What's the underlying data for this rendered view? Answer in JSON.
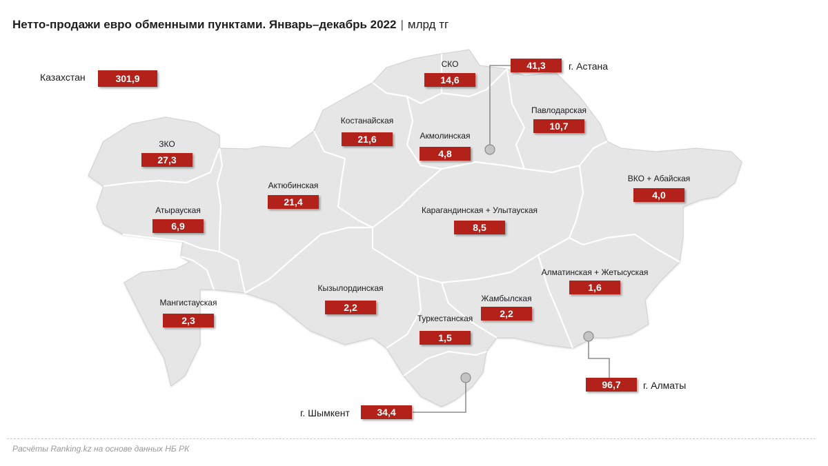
{
  "title": {
    "main": "Нетто-продажи евро обменными пунктами. Январь–декабрь 2022",
    "separator": "|",
    "unit": "млрд тг"
  },
  "total": {
    "label": "Казахстан",
    "value": "301,9"
  },
  "regions": {
    "zko": {
      "label": "ЗКО",
      "value": "27,3"
    },
    "atyrau": {
      "label": "Атырауская",
      "value": "6,9"
    },
    "mangistau": {
      "label": "Мангистауская",
      "value": "2,3"
    },
    "aktobe": {
      "label": "Актюбинская",
      "value": "21,4"
    },
    "kostanay": {
      "label": "Костанайская",
      "value": "21,6"
    },
    "sko": {
      "label": "СКО",
      "value": "14,6"
    },
    "akmola": {
      "label": "Акмолинская",
      "value": "4,8"
    },
    "pavlodar": {
      "label": "Павлодарская",
      "value": "10,7"
    },
    "vko": {
      "label": "ВКО + Абайская",
      "value": "4,0"
    },
    "karaganda": {
      "label": "Карагандинская + Улытауская",
      "value": "8,5"
    },
    "kyzylorda": {
      "label": "Кызылординская",
      "value": "2,2"
    },
    "zhambyl": {
      "label": "Жамбылская",
      "value": "2,2"
    },
    "turkestan": {
      "label": "Туркестанская",
      "value": "1,5"
    },
    "almaty_obl": {
      "label": "Алматинская + Жетысуская",
      "value": "1,6"
    }
  },
  "cities": {
    "astana": {
      "label": "г. Астана",
      "value": "41,3"
    },
    "almaty": {
      "label": "г. Алматы",
      "value": "96,7"
    },
    "shymkent": {
      "label": "г. Шымкент",
      "value": "34,4"
    }
  },
  "source": "Расчёты Ranking.kz на основе данных НБ РК",
  "colors": {
    "value_box": "#b3221a",
    "map_fill": "#e6e6e6",
    "map_border": "#ffffff",
    "city_marker": "#c4c4c4"
  }
}
